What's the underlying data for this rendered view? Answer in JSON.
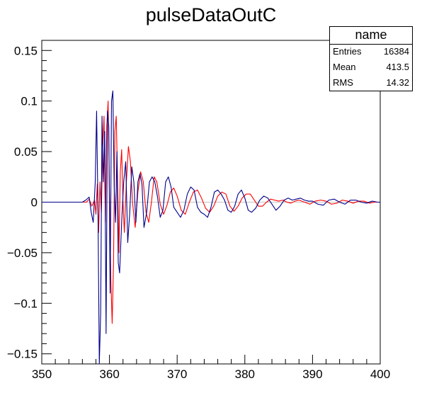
{
  "chart_data": {
    "type": "line",
    "title": "pulseDataOutC",
    "xlabel": "",
    "ylabel": "",
    "xlim": [
      350,
      400
    ],
    "ylim": [
      -0.16,
      0.16
    ],
    "x_ticks": [
      350,
      360,
      370,
      380,
      390,
      400
    ],
    "y_ticks": [
      -0.15,
      -0.1,
      -0.05,
      0,
      0.05,
      0.1,
      0.15
    ],
    "x_tick_labels": [
      "350",
      "360",
      "370",
      "380",
      "390",
      "400"
    ],
    "y_tick_labels": [
      "−0.15",
      "−0.1",
      "−0.05",
      "0",
      "0.05",
      "0.1",
      "0.15"
    ],
    "legend": "none",
    "stats_box": {
      "title": "name",
      "rows": [
        {
          "label": "Entries",
          "value": "16384"
        },
        {
          "label": "Mean",
          "value": "413.5"
        },
        {
          "label": "RMS",
          "value": "14.32"
        }
      ]
    },
    "series": [
      {
        "color": "#ff0000",
        "x": [
          350,
          356.6,
          357.0,
          357.4,
          357.8,
          358.0,
          358.2,
          358.4,
          358.6,
          358.8,
          359.0,
          359.2,
          359.4,
          359.6,
          359.8,
          360.0,
          360.2,
          360.4,
          360.6,
          360.8,
          361.0,
          361.2,
          361.4,
          361.6,
          361.8,
          362.0,
          362.2,
          362.5,
          362.8,
          363.1,
          363.4,
          363.8,
          364.2,
          364.6,
          365.0,
          365.4,
          365.8,
          366.2,
          366.6,
          367.0,
          367.5,
          368.0,
          368.5,
          369.0,
          369.5,
          370.0,
          370.6,
          371.2,
          371.8,
          372.4,
          373.0,
          373.6,
          374.2,
          374.8,
          375.4,
          376.0,
          376.6,
          377.2,
          377.8,
          378.4,
          379.0,
          379.6,
          380.2,
          380.8,
          381.4,
          382.0,
          382.6,
          383.2,
          383.8,
          384.4,
          385.0,
          385.6,
          386.2,
          386.8,
          387.4,
          388.0,
          388.8,
          389.6,
          390.4,
          391.2,
          392.0,
          392.8,
          393.6,
          394.4,
          395.2,
          396.0,
          396.8,
          397.6,
          398.4,
          399.2,
          400
        ],
        "y": [
          0,
          0,
          0.003,
          -0.004,
          0.002,
          -0.012,
          0.018,
          -0.03,
          0.02,
          -0.01,
          0.055,
          0.085,
          -0.02,
          0.075,
          0.1,
          0.01,
          -0.075,
          -0.12,
          -0.06,
          0.07,
          0.085,
          0.02,
          -0.05,
          0.03,
          0.052,
          0.0,
          -0.03,
          0.02,
          0.055,
          0.04,
          0.0,
          -0.025,
          0.01,
          0.03,
          0.02,
          -0.01,
          -0.02,
          0.0,
          0.025,
          0.02,
          -0.002,
          -0.012,
          -0.003,
          0.01,
          0.014,
          0.006,
          -0.008,
          -0.012,
          0.0,
          0.01,
          0.012,
          0.004,
          -0.006,
          -0.01,
          -0.004,
          0.006,
          0.01,
          0.008,
          -0.004,
          -0.009,
          -0.004,
          0.004,
          0.008,
          0.008,
          0.002,
          -0.004,
          -0.004,
          0.0,
          0.003,
          0.002,
          0.001,
          0.002,
          0.0,
          -0.001,
          0.001,
          0.002,
          0.0,
          -0.002,
          0.001,
          0.002,
          0.001,
          -0.002,
          -0.001,
          0.002,
          0.001,
          -0.001,
          0.001,
          0.001,
          -0.001,
          0.0,
          0
        ]
      },
      {
        "color": "#00008b",
        "x": [
          350,
          356.0,
          356.5,
          357.0,
          357.3,
          357.6,
          357.9,
          358.1,
          358.3,
          358.5,
          358.7,
          358.9,
          359.1,
          359.3,
          359.5,
          359.7,
          359.9,
          360.1,
          360.3,
          360.5,
          360.7,
          360.9,
          361.1,
          361.3,
          361.5,
          361.8,
          362.1,
          362.4,
          362.7,
          363.0,
          363.3,
          363.6,
          363.9,
          364.2,
          364.5,
          364.8,
          365.1,
          365.5,
          365.9,
          366.3,
          366.7,
          367.1,
          367.5,
          367.9,
          368.3,
          368.7,
          369.1,
          369.5,
          370.0,
          370.5,
          371.0,
          371.5,
          372.0,
          372.5,
          373.0,
          373.5,
          374.0,
          374.5,
          375.0,
          375.5,
          376.0,
          376.5,
          377.0,
          377.5,
          378.0,
          378.5,
          379.0,
          379.5,
          380.0,
          380.5,
          381.0,
          381.6,
          382.2,
          382.8,
          383.4,
          384.0,
          384.6,
          385.2,
          385.8,
          386.4,
          387.0,
          387.6,
          388.2,
          388.8,
          389.4,
          390.0,
          390.8,
          391.6,
          392.4,
          393.2,
          394.0,
          394.8,
          395.6,
          396.4,
          397.2,
          398.0,
          398.8,
          399.6,
          400
        ],
        "y": [
          0,
          0,
          0.002,
          0.005,
          -0.01,
          -0.02,
          0.02,
          0.09,
          -0.005,
          -0.16,
          -0.11,
          0.085,
          0.02,
          0.07,
          -0.13,
          0.09,
          0.075,
          -0.09,
          0.1,
          0.11,
          0.015,
          -0.02,
          0.05,
          -0.06,
          -0.07,
          -0.02,
          0.02,
          0.04,
          -0.04,
          -0.01,
          0.035,
          0.02,
          -0.02,
          0.02,
          0.028,
          0.018,
          -0.025,
          -0.01,
          0.02,
          0.025,
          0.02,
          0.005,
          -0.015,
          -0.008,
          0.02,
          0.025,
          0.015,
          -0.005,
          -0.01,
          -0.015,
          -0.008,
          0.008,
          0.015,
          0.012,
          -0.005,
          -0.01,
          -0.012,
          -0.015,
          -0.005,
          0.01,
          0.012,
          0.008,
          0.002,
          -0.008,
          -0.01,
          -0.004,
          0.008,
          0.012,
          0.004,
          -0.008,
          -0.01,
          -0.006,
          0.002,
          0.006,
          0.004,
          -0.002,
          -0.008,
          -0.004,
          0.002,
          0.004,
          0.002,
          0.003,
          0.004,
          0.002,
          0.001,
          0.001,
          -0.002,
          -0.003,
          0.002,
          0.003,
          0.0,
          -0.002,
          0.002,
          0.002,
          0.0,
          -0.001,
          0.001,
          0.0,
          0
        ]
      }
    ]
  }
}
